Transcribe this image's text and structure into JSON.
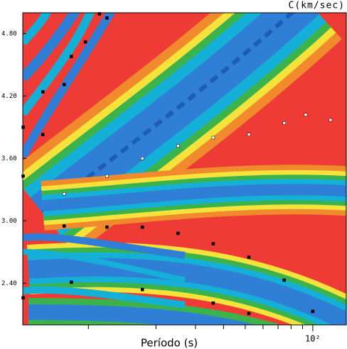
{
  "chart_data": {
    "type": "scatter",
    "title": "C(km/sec)",
    "xlabel": "Período (s)",
    "log_x": true,
    "xlim": [
      5.1,
      141
    ],
    "ylim": [
      2.0,
      5.0
    ],
    "xticks": [
      {
        "value": 100,
        "label": "10²"
      }
    ],
    "minor_xticks": [
      10,
      20,
      30,
      40,
      50,
      60,
      70,
      80,
      90
    ],
    "yticks": [
      {
        "value": 2.4,
        "label": "2.40"
      },
      {
        "value": 3.0,
        "label": "3.00"
      },
      {
        "value": 3.6,
        "label": "3.60"
      },
      {
        "value": 4.2,
        "label": "4.20"
      },
      {
        "value": 4.8,
        "label": "4.80"
      }
    ],
    "series": [
      {
        "color": "#ffffff",
        "x": [
          7.8,
          12.1,
          17.4,
          25.1,
          36.0,
          51.9,
          74.6,
          93,
          120
        ],
        "values": [
          3.26,
          3.43,
          3.6,
          3.72,
          3.8,
          3.83,
          3.94,
          4.02,
          3.97
        ]
      },
      {
        "color": "#000000",
        "x": [
          7.8,
          12.1,
          17.4,
          25.1,
          36.0,
          51.9,
          74.6,
          100
        ],
        "values": [
          2.95,
          2.94,
          2.94,
          2.88,
          2.78,
          2.65,
          2.43,
          2.13
        ]
      },
      {
        "color": "#000000",
        "x": [
          5.12,
          6.27,
          8.4,
          12.1
        ],
        "values": [
          3.9,
          4.24,
          4.58,
          4.95
        ]
      },
      {
        "color": "#000000",
        "x": [
          5.12,
          6.27,
          7.8,
          9.7,
          11.2
        ],
        "values": [
          3.43,
          3.83,
          4.31,
          4.72,
          4.99
        ]
      },
      {
        "color": "#000000",
        "x": [
          5.12,
          8.4,
          17.4,
          36.0,
          51.9
        ],
        "values": [
          2.26,
          2.41,
          2.34,
          2.21,
          2.11
        ]
      }
    ]
  }
}
